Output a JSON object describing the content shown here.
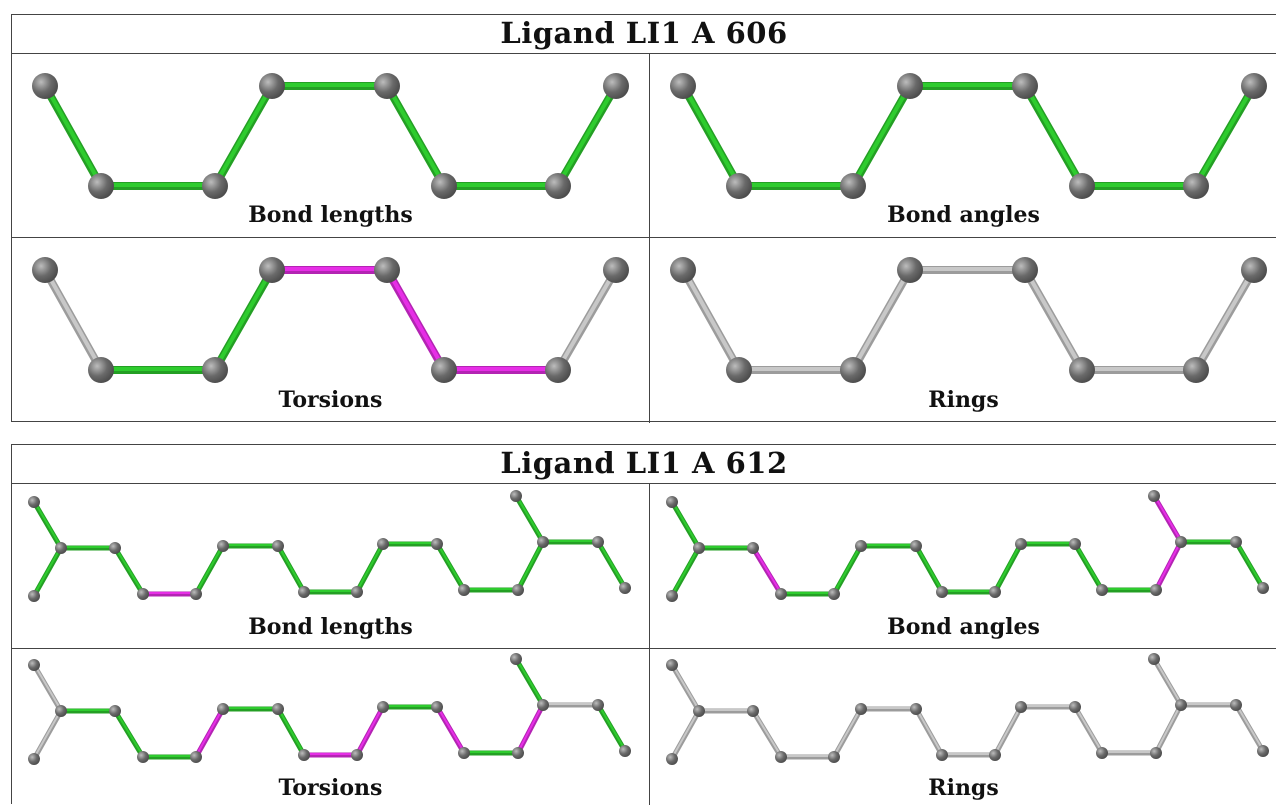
{
  "colors": {
    "ok": "#2ecc2e",
    "outlier": "#e62ee6",
    "neutral": "#c8c8c8",
    "atom": "#6a6a6a"
  },
  "panels": [
    {
      "title": "Ligand LI1 A 606",
      "cells": [
        {
          "caption": "Bond lengths",
          "bond_colors": [
            "ok",
            "ok",
            "ok",
            "ok",
            "ok",
            "ok",
            "ok"
          ]
        },
        {
          "caption": "Bond angles",
          "bond_colors": [
            "ok",
            "ok",
            "ok",
            "ok",
            "ok",
            "ok",
            "ok"
          ]
        },
        {
          "caption": "Torsions",
          "bond_colors": [
            "neutral",
            "ok",
            "ok",
            "outlier",
            "outlier",
            "outlier",
            "neutral"
          ]
        },
        {
          "caption": "Rings",
          "bond_colors": [
            "neutral",
            "neutral",
            "neutral",
            "neutral",
            "neutral",
            "neutral",
            "neutral"
          ]
        }
      ]
    },
    {
      "title": "Ligand LI1 A 612",
      "cells": [
        {
          "caption": "Bond lengths",
          "bond_colors": [
            "ok",
            "ok",
            "ok",
            "ok",
            "outlier",
            "ok",
            "ok",
            "ok",
            "ok",
            "ok",
            "ok",
            "ok",
            "ok",
            "ok",
            "ok",
            "ok",
            "ok",
            "ok"
          ]
        },
        {
          "caption": "Bond angles",
          "bond_colors": [
            "ok",
            "ok",
            "ok",
            "outlier",
            "ok",
            "ok",
            "ok",
            "ok",
            "ok",
            "ok",
            "ok",
            "ok",
            "ok",
            "outlier",
            "outlier",
            "ok",
            "ok",
            "ok"
          ]
        },
        {
          "caption": "Torsions",
          "bond_colors": [
            "neutral",
            "neutral",
            "ok",
            "ok",
            "ok",
            "outlier",
            "ok",
            "ok",
            "outlier",
            "outlier",
            "ok",
            "outlier",
            "ok",
            "outlier",
            "ok",
            "neutral",
            "ok",
            "neutral"
          ]
        },
        {
          "caption": "Rings",
          "bond_colors": [
            "neutral",
            "neutral",
            "neutral",
            "neutral",
            "neutral",
            "neutral",
            "neutral",
            "neutral",
            "neutral",
            "neutral",
            "neutral",
            "neutral",
            "neutral",
            "neutral",
            "neutral",
            "neutral",
            "neutral",
            "neutral"
          ]
        }
      ]
    }
  ]
}
